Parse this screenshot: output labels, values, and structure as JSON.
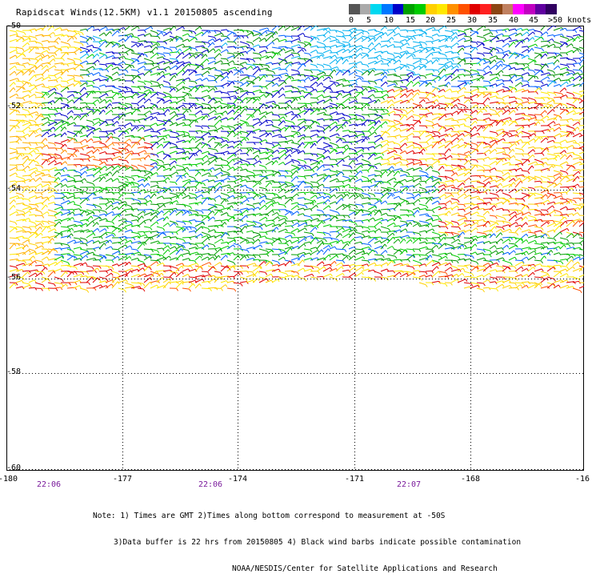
{
  "title": "Rapidscat Winds(12.5KM) v1.1 20150805 ascending",
  "colorbar": {
    "labels": [
      "0",
      "5",
      "10",
      "15",
      "20",
      "25",
      "30",
      "35",
      "40",
      "45",
      ">50 knots"
    ],
    "colors": [
      "#555555",
      "#aaaaaa",
      "#00d8f0",
      "#0078ff",
      "#0000c8",
      "#00a000",
      "#00cc00",
      "#ffd000",
      "#ffe800",
      "#ff9000",
      "#ff5000",
      "#e00000",
      "#ff2020",
      "#8b4513",
      "#c08060",
      "#ff00ff",
      "#c000c0",
      "#6000a0",
      "#300060"
    ]
  },
  "lat_labels": [
    "-50",
    "-52",
    "-54",
    "-56",
    "-58",
    "-60"
  ],
  "lon_labels": [
    "-180",
    "-177",
    "-174",
    "-171",
    "-168",
    "-16"
  ],
  "times": [
    "22:06",
    "22:06",
    "22:07"
  ],
  "notes": [
    "Note: 1) Times are GMT 2)Times along bottom correspond to measurement at -50S",
    "3)Data buffer is 22 hrs from 20150805 4) Black wind barbs indicate possible contamination",
    "NOAA/NESDIS/Center for Satellite Applications and Research"
  ]
}
